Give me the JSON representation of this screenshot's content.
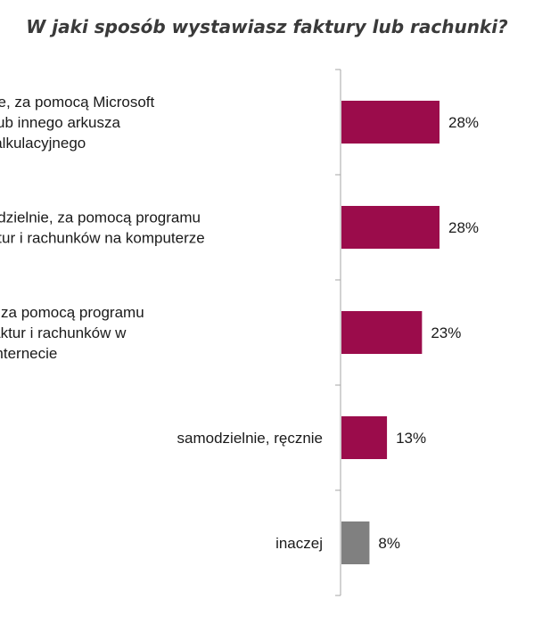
{
  "chart_data": {
    "type": "bar",
    "orientation": "horizontal",
    "title": "W jaki sposób wystawiasz faktury lub rachunki?",
    "categories": [
      "samodzielnie, za pomocą Microsoft Excel lub innego arkusza kalkulacyjnego",
      "samodzielnie, za pomocą programu do faktur i rachunków na komputerze",
      "samodzielnie, za pomocą programu online do faktur i rachunków w Internecie",
      "samodzielnie, ręcznie",
      "inaczej"
    ],
    "category_lines": [
      [
        "samodzielnie, za pomocą Microsoft",
        "Excel lub innego arkusza",
        "kalkulacyjnego"
      ],
      [
        "samodzielnie, za pomocą programu",
        "do faktur i rachunków na komputerze"
      ],
      [
        "samodzielnie, za pomocą programu",
        "online do faktur i rachunków w",
        "Internecie"
      ],
      [
        "samodzielnie, ręcznie"
      ],
      [
        "inaczej"
      ]
    ],
    "values": [
      28,
      28,
      23,
      13,
      8
    ],
    "value_labels": [
      "28%",
      "28%",
      "23%",
      "13%",
      "8%"
    ],
    "bar_colors": [
      "#9b0c4b",
      "#9b0c4b",
      "#9b0c4b",
      "#9b0c4b",
      "#808080"
    ],
    "xlim": [
      0,
      100
    ],
    "grid": false,
    "legend": "none"
  }
}
